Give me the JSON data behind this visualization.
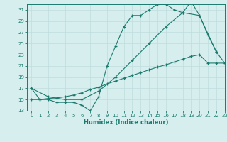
{
  "line1_x": [
    0,
    1,
    2,
    3,
    4,
    5,
    6,
    7,
    8,
    9,
    10,
    11,
    12,
    13,
    14,
    15,
    16,
    17,
    18,
    19,
    20,
    21,
    22
  ],
  "line1_y": [
    17,
    15,
    15,
    14.5,
    14.5,
    14.5,
    14,
    13,
    15.5,
    21,
    24.5,
    28,
    30,
    30,
    31,
    32,
    32,
    31,
    30.5,
    32.5,
    30,
    26.5,
    23.5
  ],
  "line2_x": [
    0,
    2,
    4,
    6,
    8,
    10,
    12,
    14,
    16,
    18,
    20,
    22,
    23
  ],
  "line2_y": [
    17,
    15.5,
    15,
    15,
    16.5,
    19,
    22,
    25,
    28,
    30.5,
    30,
    23.5,
    21.5
  ],
  "line3_x": [
    0,
    1,
    2,
    3,
    4,
    5,
    6,
    7,
    8,
    9,
    10,
    11,
    12,
    13,
    14,
    15,
    16,
    17,
    18,
    19,
    20,
    21,
    22,
    23
  ],
  "line3_y": [
    15,
    15,
    15.2,
    15.3,
    15.5,
    15.8,
    16.2,
    16.8,
    17.2,
    17.8,
    18.3,
    18.8,
    19.3,
    19.8,
    20.3,
    20.8,
    21.2,
    21.7,
    22.2,
    22.7,
    23.0,
    21.5,
    21.5,
    21.5
  ],
  "color": "#1a7a6e",
  "bg_color": "#d6eeee",
  "grid_color": "#c0dcdc",
  "xlabel": "Humidex (Indice chaleur)",
  "xlim": [
    -0.5,
    23
  ],
  "ylim": [
    13,
    32
  ],
  "yticks": [
    13,
    15,
    17,
    19,
    21,
    23,
    25,
    27,
    29,
    31
  ],
  "xticks": [
    0,
    1,
    2,
    3,
    4,
    5,
    6,
    7,
    8,
    9,
    10,
    11,
    12,
    13,
    14,
    15,
    16,
    17,
    18,
    19,
    20,
    21,
    22,
    23
  ]
}
